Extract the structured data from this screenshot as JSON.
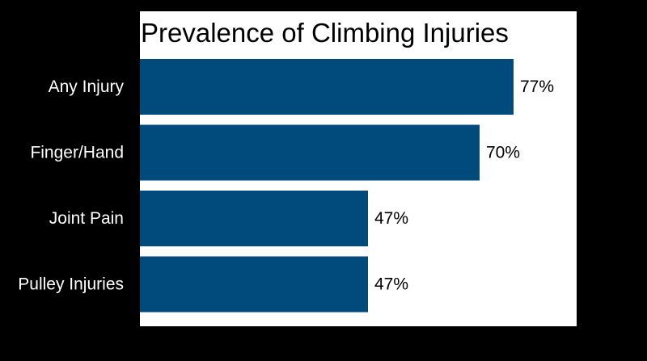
{
  "chart_data": {
    "type": "bar",
    "orientation": "horizontal",
    "title": "Prevalence of Climbing Injuries",
    "categories": [
      "Any Injury",
      "Finger/Hand",
      "Joint Pain",
      "Pulley Injuries"
    ],
    "values": [
      77,
      70,
      47,
      47
    ],
    "value_labels": [
      "77%",
      "70%",
      "47%",
      "47%"
    ],
    "unit": "%",
    "xlabel": "",
    "ylabel": "",
    "xlim": [
      0,
      90
    ],
    "grid": false,
    "legend": "none",
    "colors": {
      "bar": "#004a7c",
      "plot_background": "#ffffff",
      "page_background": "#000000",
      "category_text": "#ffffff",
      "value_text": "#000000"
    }
  }
}
